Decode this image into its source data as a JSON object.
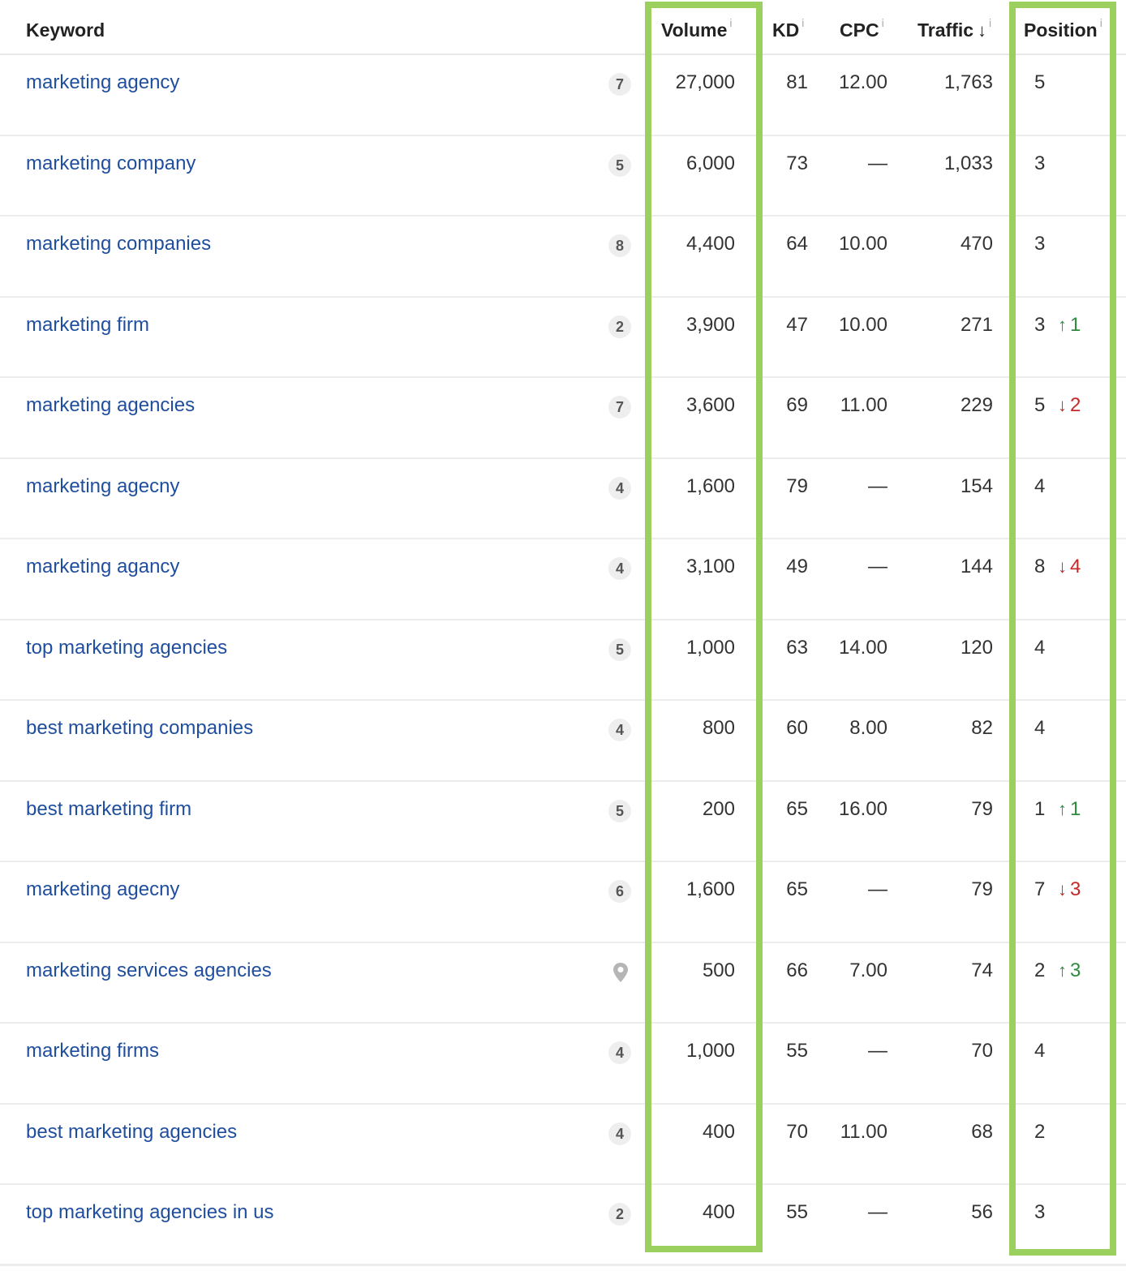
{
  "columns": {
    "keyword": "Keyword",
    "volume": "Volume",
    "kd": "KD",
    "cpc": "CPC",
    "traffic": "Traffic",
    "position": "Position",
    "info_glyph": "i",
    "sort_glyph": "↓"
  },
  "rows": [
    {
      "keyword": "marketing agency",
      "serp": "7",
      "volume": "27,000",
      "kd": "81",
      "cpc": "12.00",
      "traffic": "1,763",
      "position": "5",
      "change": "",
      "change_dir": ""
    },
    {
      "keyword": "marketing company",
      "serp": "5",
      "volume": "6,000",
      "kd": "73",
      "cpc": "—",
      "traffic": "1,033",
      "position": "3",
      "change": "",
      "change_dir": ""
    },
    {
      "keyword": "marketing companies",
      "serp": "8",
      "volume": "4,400",
      "kd": "64",
      "cpc": "10.00",
      "traffic": "470",
      "position": "3",
      "change": "",
      "change_dir": ""
    },
    {
      "keyword": "marketing firm",
      "serp": "2",
      "volume": "3,900",
      "kd": "47",
      "cpc": "10.00",
      "traffic": "271",
      "position": "3",
      "change": "1",
      "change_dir": "up"
    },
    {
      "keyword": "marketing agencies",
      "serp": "7",
      "volume": "3,600",
      "kd": "69",
      "cpc": "11.00",
      "traffic": "229",
      "position": "5",
      "change": "2",
      "change_dir": "down"
    },
    {
      "keyword": "marketing agecny",
      "serp": "4",
      "volume": "1,600",
      "kd": "79",
      "cpc": "—",
      "traffic": "154",
      "position": "4",
      "change": "",
      "change_dir": ""
    },
    {
      "keyword": "marketing agancy",
      "serp": "4",
      "volume": "3,100",
      "kd": "49",
      "cpc": "—",
      "traffic": "144",
      "position": "8",
      "change": "4",
      "change_dir": "down"
    },
    {
      "keyword": "top marketing agencies",
      "serp": "5",
      "volume": "1,000",
      "kd": "63",
      "cpc": "14.00",
      "traffic": "120",
      "position": "4",
      "change": "",
      "change_dir": ""
    },
    {
      "keyword": "best marketing companies",
      "serp": "4",
      "volume": "800",
      "kd": "60",
      "cpc": "8.00",
      "traffic": "82",
      "position": "4",
      "change": "",
      "change_dir": ""
    },
    {
      "keyword": "best marketing firm",
      "serp": "5",
      "volume": "200",
      "kd": "65",
      "cpc": "16.00",
      "traffic": "79",
      "position": "1",
      "change": "1",
      "change_dir": "up"
    },
    {
      "keyword": "marketing agecny",
      "serp": "6",
      "volume": "1,600",
      "kd": "65",
      "cpc": "—",
      "traffic": "79",
      "position": "7",
      "change": "3",
      "change_dir": "down"
    },
    {
      "keyword": "marketing services agencies",
      "serp": "",
      "serp_icon": "location-pin-icon",
      "volume": "500",
      "kd": "66",
      "cpc": "7.00",
      "traffic": "74",
      "position": "2",
      "change": "3",
      "change_dir": "up"
    },
    {
      "keyword": "marketing firms",
      "serp": "4",
      "volume": "1,000",
      "kd": "55",
      "cpc": "—",
      "traffic": "70",
      "position": "4",
      "change": "",
      "change_dir": ""
    },
    {
      "keyword": "best marketing agencies",
      "serp": "4",
      "volume": "400",
      "kd": "70",
      "cpc": "11.00",
      "traffic": "68",
      "position": "2",
      "change": "",
      "change_dir": ""
    },
    {
      "keyword": "top marketing agencies in us",
      "serp": "2",
      "volume": "400",
      "kd": "55",
      "cpc": "—",
      "traffic": "56",
      "position": "3",
      "change": "",
      "change_dir": ""
    }
  ],
  "colors": {
    "link": "#1f4e9e",
    "highlight": "#9bcf5e",
    "up": "#2e8b3e",
    "down": "#c62828"
  }
}
